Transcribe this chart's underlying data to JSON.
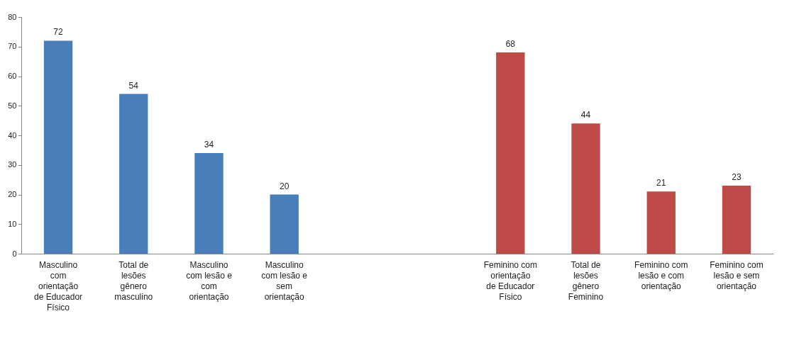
{
  "chart_data": {
    "type": "bar",
    "categories": [
      "Masculino com orientação de Educador Físico",
      "Total de lesões gênero masculino",
      "Masculino com lesão e com orientação",
      "Masculino com lesão e sem orientação",
      null,
      null,
      "Feminino com orientação de Educador Físico",
      "Total de lesões gênero Feminino",
      "Feminino com lesão e com orientação",
      "Feminino com lesão e sem orientação"
    ],
    "values": [
      72,
      54,
      34,
      20,
      null,
      null,
      68,
      44,
      21,
      23
    ],
    "colors": [
      "#4a7ebb",
      "#4a7ebb",
      "#4a7ebb",
      "#4a7ebb",
      null,
      null,
      "#be4b48",
      "#be4b48",
      "#be4b48",
      "#be4b48"
    ],
    "ylim": [
      0,
      80
    ],
    "yticks": [
      0,
      10,
      20,
      30,
      40,
      50,
      60,
      70,
      80
    ],
    "data_labels": true,
    "grid": false
  }
}
